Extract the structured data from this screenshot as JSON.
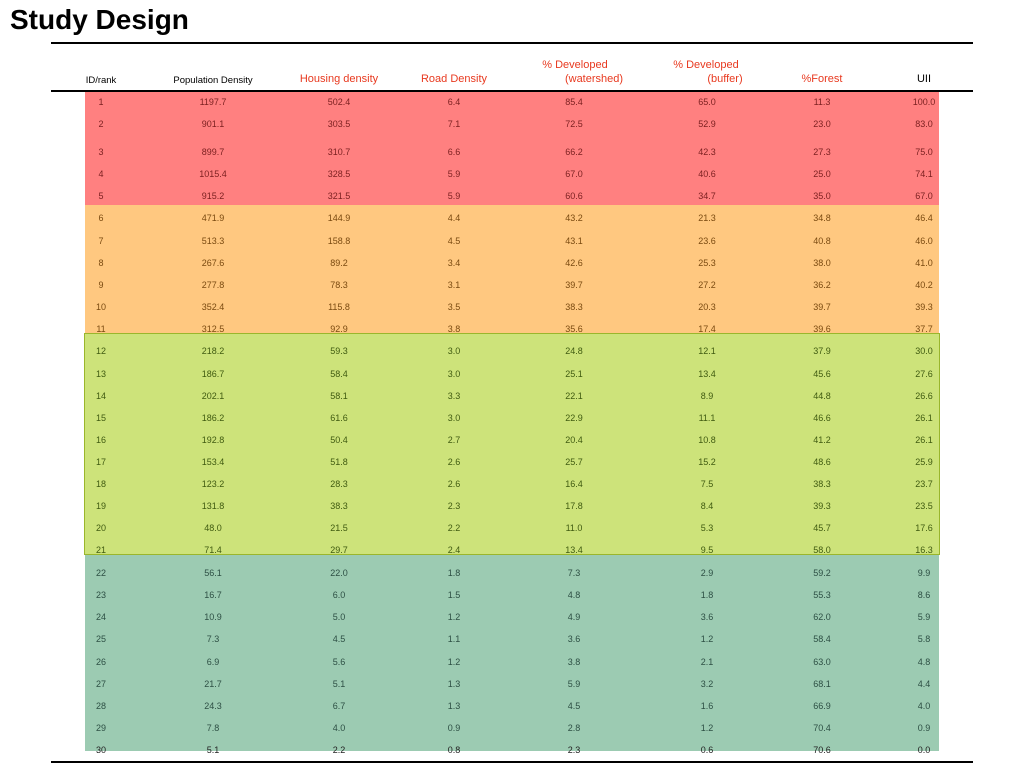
{
  "title": "Study Design",
  "headers": {
    "id": "ID/rank",
    "pop": "Population Density",
    "housing": "Housing density",
    "road": "Road Density",
    "dev_ws_1": "%  Developed",
    "dev_ws_2": "(watershed)",
    "dev_buf_1": "% Developed",
    "dev_buf_2": "(buffer)",
    "forest": "%Forest",
    "uii": "UII"
  },
  "colors": {
    "red_band": "#ff8080",
    "orange_band": "#ffc880",
    "green_band": "#cde37a",
    "teal_band": "#9ccbb2",
    "header_red": "#e8391f"
  },
  "rows": [
    [
      "1",
      "1197.7",
      "502.4",
      "6.4",
      "85.4",
      "65.0",
      "11.3",
      "100.0"
    ],
    [
      "2",
      "901.1",
      "303.5",
      "7.1",
      "72.5",
      "52.9",
      "23.0",
      "83.0"
    ],
    [
      "3",
      "899.7",
      "310.7",
      "6.6",
      "66.2",
      "42.3",
      "27.3",
      "75.0"
    ],
    [
      "4",
      "1015.4",
      "328.5",
      "5.9",
      "67.0",
      "40.6",
      "25.0",
      "74.1"
    ],
    [
      "5",
      "915.2",
      "321.5",
      "5.9",
      "60.6",
      "34.7",
      "35.0",
      "67.0"
    ],
    [
      "6",
      "471.9",
      "144.9",
      "4.4",
      "43.2",
      "21.3",
      "34.8",
      "46.4"
    ],
    [
      "7",
      "513.3",
      "158.8",
      "4.5",
      "43.1",
      "23.6",
      "40.8",
      "46.0"
    ],
    [
      "8",
      "267.6",
      "89.2",
      "3.4",
      "42.6",
      "25.3",
      "38.0",
      "41.0"
    ],
    [
      "9",
      "277.8",
      "78.3",
      "3.1",
      "39.7",
      "27.2",
      "36.2",
      "40.2"
    ],
    [
      "10",
      "352.4",
      "115.8",
      "3.5",
      "38.3",
      "20.3",
      "39.7",
      "39.3"
    ],
    [
      "11",
      "312.5",
      "92.9",
      "3.8",
      "35.6",
      "17.4",
      "39.6",
      "37.7"
    ],
    [
      "12",
      "218.2",
      "59.3",
      "3.0",
      "24.8",
      "12.1",
      "37.9",
      "30.0"
    ],
    [
      "13",
      "186.7",
      "58.4",
      "3.0",
      "25.1",
      "13.4",
      "45.6",
      "27.6"
    ],
    [
      "14",
      "202.1",
      "58.1",
      "3.3",
      "22.1",
      "8.9",
      "44.8",
      "26.6"
    ],
    [
      "15",
      "186.2",
      "61.6",
      "3.0",
      "22.9",
      "11.1",
      "46.6",
      "26.1"
    ],
    [
      "16",
      "192.8",
      "50.4",
      "2.7",
      "20.4",
      "10.8",
      "41.2",
      "26.1"
    ],
    [
      "17",
      "153.4",
      "51.8",
      "2.6",
      "25.7",
      "15.2",
      "48.6",
      "25.9"
    ],
    [
      "18",
      "123.2",
      "28.3",
      "2.6",
      "16.4",
      "7.5",
      "38.3",
      "23.7"
    ],
    [
      "19",
      "131.8",
      "38.3",
      "2.3",
      "17.8",
      "8.4",
      "39.3",
      "23.5"
    ],
    [
      "20",
      "48.0",
      "21.5",
      "2.2",
      "11.0",
      "5.3",
      "45.7",
      "17.6"
    ],
    [
      "21",
      "71.4",
      "29.7",
      "2.4",
      "13.4",
      "9.5",
      "58.0",
      "16.3"
    ],
    [
      "22",
      "56.1",
      "22.0",
      "1.8",
      "7.3",
      "2.9",
      "59.2",
      "9.9"
    ],
    [
      "23",
      "16.7",
      "6.0",
      "1.5",
      "4.8",
      "1.8",
      "55.3",
      "8.6"
    ],
    [
      "24",
      "10.9",
      "5.0",
      "1.2",
      "4.9",
      "3.6",
      "62.0",
      "5.9"
    ],
    [
      "25",
      "7.3",
      "4.5",
      "1.1",
      "3.6",
      "1.2",
      "58.4",
      "5.8"
    ],
    [
      "26",
      "6.9",
      "5.6",
      "1.2",
      "3.8",
      "2.1",
      "63.0",
      "4.8"
    ],
    [
      "27",
      "21.7",
      "5.1",
      "1.3",
      "5.9",
      "3.2",
      "68.1",
      "4.4"
    ],
    [
      "28",
      "24.3",
      "6.7",
      "1.3",
      "4.5",
      "1.6",
      "66.9",
      "4.0"
    ],
    [
      "29",
      "7.8",
      "4.0",
      "0.9",
      "2.8",
      "1.2",
      "70.4",
      "0.9"
    ],
    [
      "30",
      "5.1",
      "2.2",
      "0.8",
      "2.3",
      "0.6",
      "70.6",
      "0.0"
    ]
  ]
}
